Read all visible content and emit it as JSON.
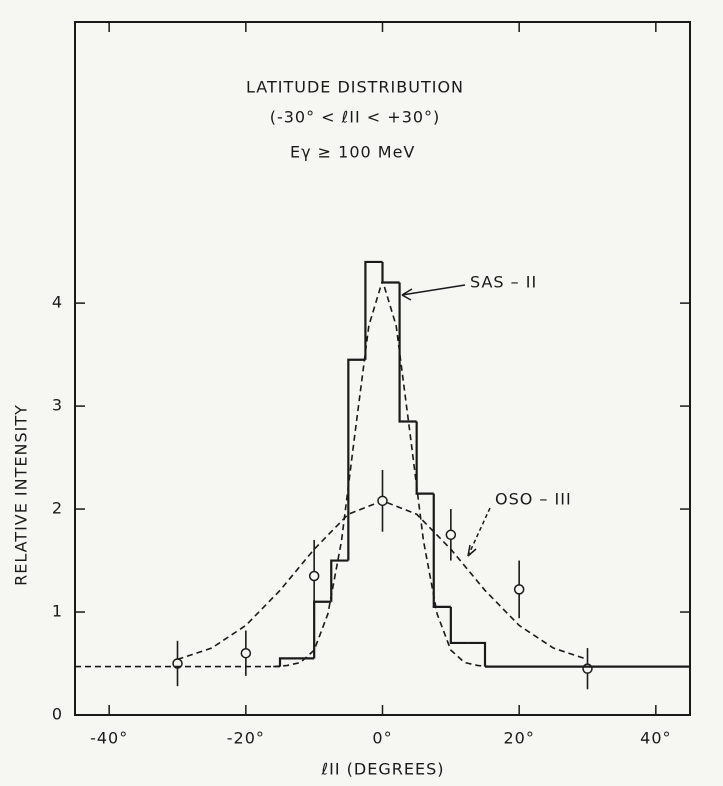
{
  "chart_data": {
    "type": "line",
    "title": "LATITUDE DISTRIBUTION",
    "subtitle": "(-30° < ℓII < +30°)",
    "energy_label": "Eγ ≥ 100 MeV",
    "x_label": "ℓII (DEGREES)",
    "y_label": "RELATIVE INTENSITY",
    "annotations": [
      {
        "text": "SAS – II",
        "series": 1
      },
      {
        "text": "OSO – III",
        "series": 3
      }
    ],
    "xlim": [
      -45,
      45
    ],
    "ylim": [
      0,
      6.73
    ],
    "xticks": [
      {
        "value": -40,
        "label": "-40°"
      },
      {
        "value": -20,
        "label": "-20°"
      },
      {
        "value": 0,
        "label": "0°"
      },
      {
        "value": 20,
        "label": "20°"
      },
      {
        "value": 40,
        "label": "40°"
      }
    ],
    "yticks": [
      0,
      1,
      2,
      3,
      4
    ],
    "series": [
      {
        "type": "histogram",
        "color": "#1a1a1a",
        "bins": [
          -15,
          -12.5,
          -10,
          -7.5,
          -5,
          -2.5,
          0,
          2.5,
          5,
          7.5,
          10,
          12.5,
          15
        ],
        "values": [
          0.55,
          0.55,
          1.1,
          1.5,
          3.45,
          4.4,
          4.2,
          2.85,
          2.15,
          1.05,
          0.7,
          0.7
        ]
      },
      {
        "type": "line",
        "color": "#1a1a1a",
        "dash": true,
        "x": [
          -16,
          -14,
          -12,
          -10,
          -8,
          -6,
          -4,
          -2,
          0,
          2,
          4,
          6,
          8,
          10,
          12,
          14,
          16
        ],
        "values": [
          0.47,
          0.48,
          0.51,
          0.63,
          0.98,
          1.69,
          2.75,
          3.78,
          4.22,
          3.78,
          2.75,
          1.69,
          0.98,
          0.63,
          0.51,
          0.48,
          0.47
        ]
      },
      {
        "type": "line",
        "color": "#1a1a1a",
        "dash": true,
        "x": [
          -30,
          -25,
          -20,
          -15,
          -10,
          -5,
          0,
          5,
          10,
          15,
          20,
          25,
          30
        ],
        "values": [
          0.54,
          0.65,
          0.87,
          1.21,
          1.61,
          1.95,
          2.08,
          1.95,
          1.61,
          1.21,
          0.87,
          0.65,
          0.54
        ]
      },
      {
        "type": "scatter",
        "color": "#1a1a1a",
        "x": [
          -30,
          -20,
          -10,
          0,
          10,
          20,
          30
        ],
        "values": [
          0.5,
          0.6,
          1.35,
          2.08,
          1.75,
          1.22,
          0.45
        ],
        "errors": [
          0.22,
          0.22,
          0.35,
          0.3,
          0.25,
          0.28,
          0.2
        ]
      },
      {
        "type": "line",
        "color": "#1a1a1a",
        "dash": true,
        "x": [
          -45,
          -15
        ],
        "values": [
          0.47,
          0.47
        ]
      },
      {
        "type": "line",
        "color": "#1a1a1a",
        "dash": false,
        "x": [
          15,
          45
        ],
        "values": [
          0.47,
          0.47
        ]
      }
    ]
  }
}
